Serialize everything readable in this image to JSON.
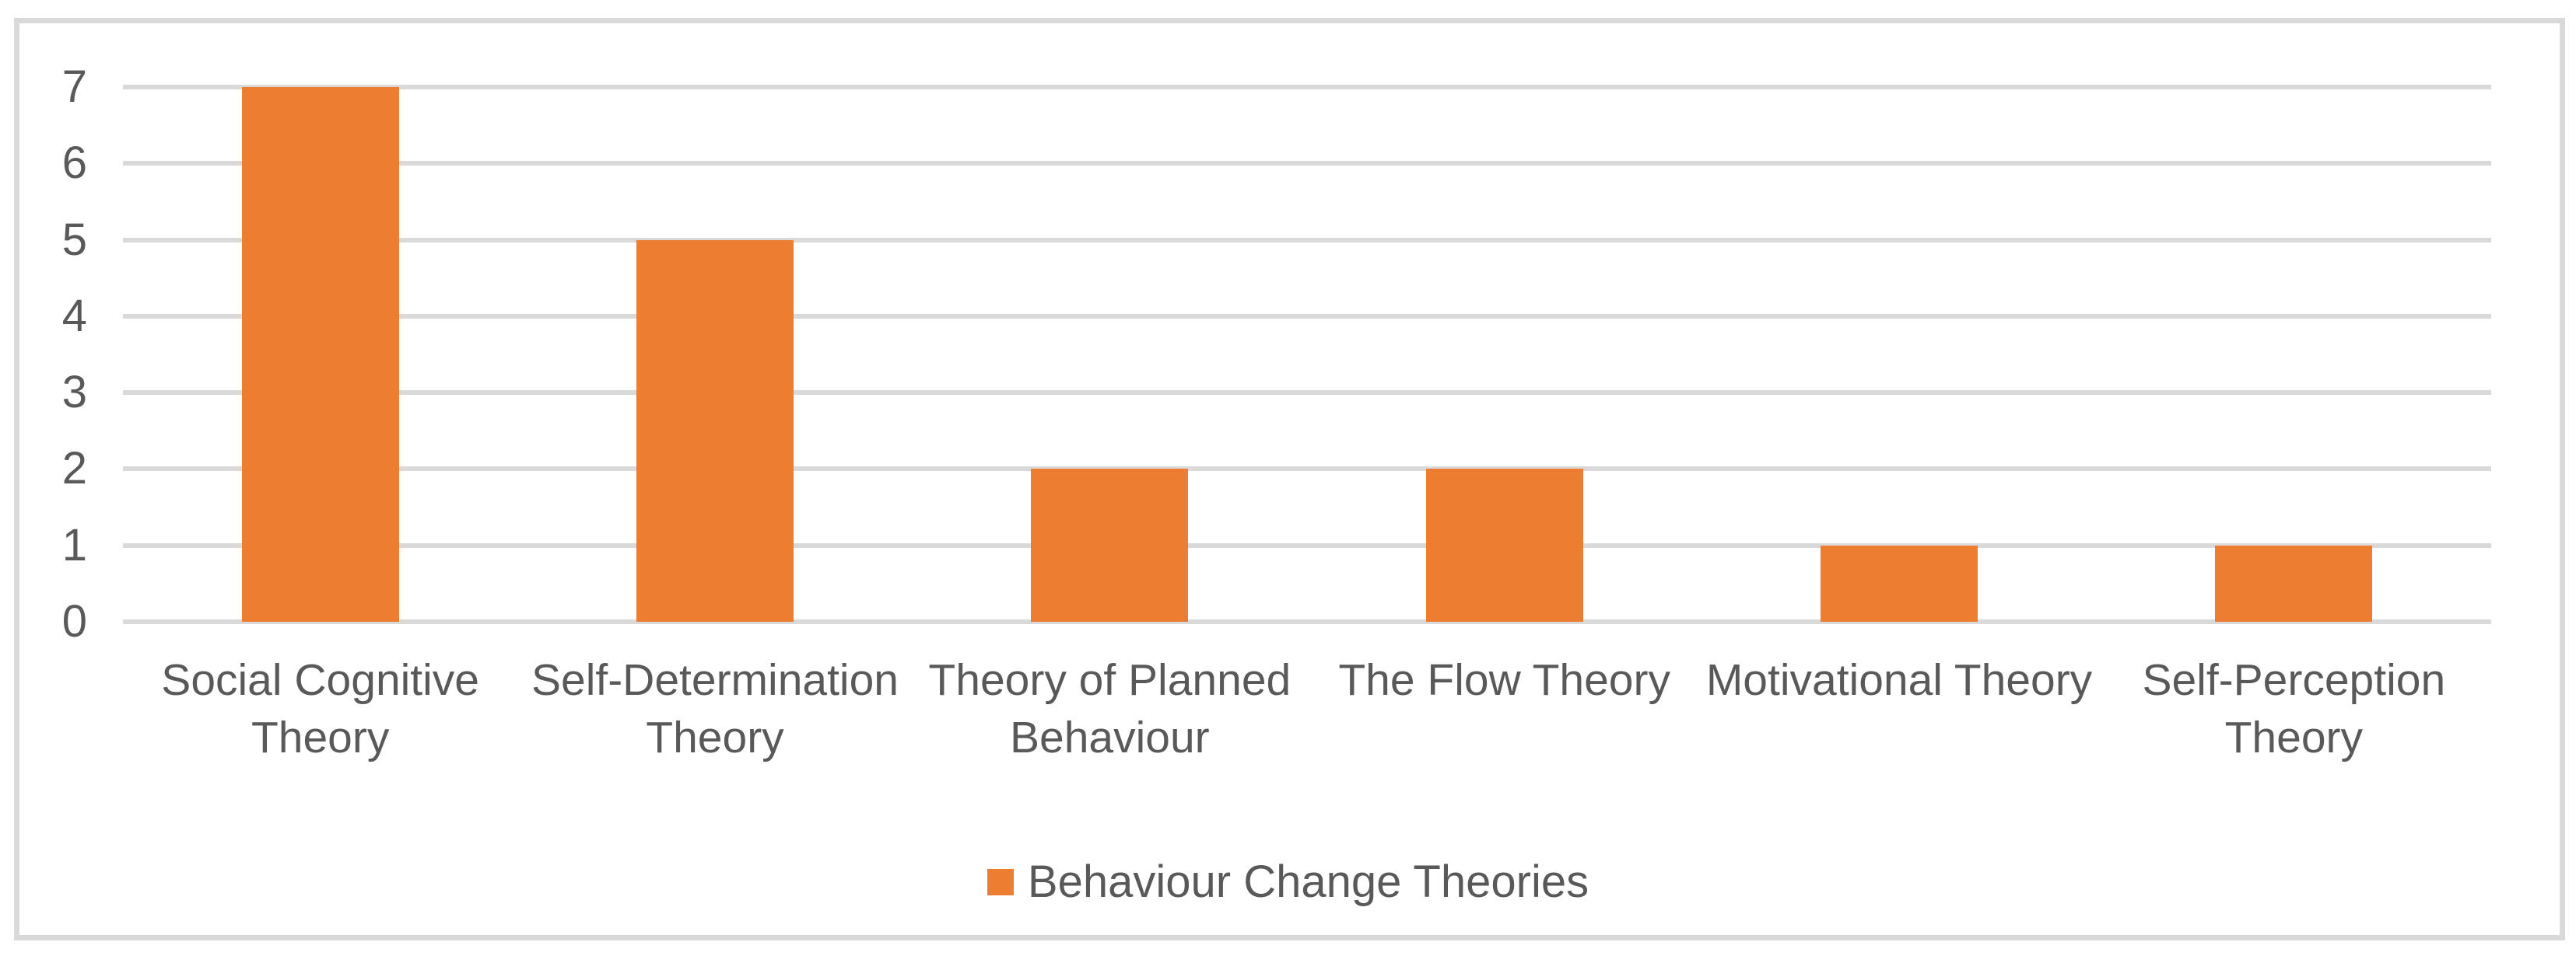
{
  "chart_data": {
    "type": "bar",
    "categories": [
      "Social Cognitive Theory",
      "Self-Determination Theory",
      "Theory of Planned Behaviour",
      "The Flow Theory",
      "Motivational Theory",
      "Self-Perception Theory"
    ],
    "series": [
      {
        "name": "Behaviour Change Theories",
        "values": [
          7,
          5,
          2,
          2,
          1,
          1
        ]
      }
    ],
    "title": "",
    "xlabel": "",
    "ylabel": "",
    "ylim": [
      0,
      7
    ],
    "yticks": [
      0,
      1,
      2,
      3,
      4,
      5,
      6,
      7
    ],
    "grid": "horizontal",
    "legend_position": "bottom-center"
  },
  "colors": {
    "bar": "#ED7D31",
    "gridline": "#D9D9D9",
    "frame_border": "#D9D9D9",
    "text": "#595959",
    "background": "#FFFFFF"
  }
}
